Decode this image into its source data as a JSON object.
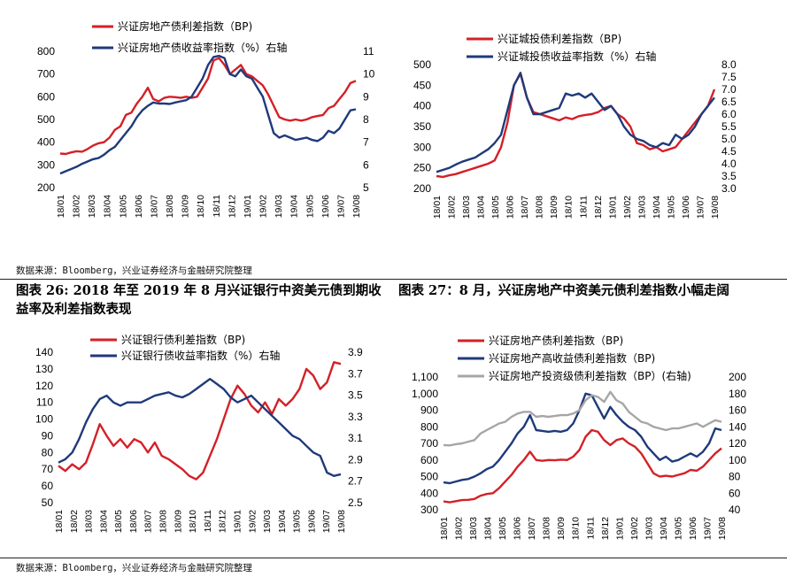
{
  "source_top": "数据来源：Bloomberg，兴业证券经济与金融研究院整理",
  "source_bottom": "数据来源：Bloomberg，兴业证券经济与金融研究院整理",
  "caption_26": "图表 26:  2018 年至 2019 年 8 月兴证银行中资美元债到期收益率及利差指数表现",
  "caption_27": "图表 27：8 月，兴证房地产中资美元债利差指数小幅走阔",
  "x_ticks": [
    "18/01",
    "18/02",
    "18/03",
    "18/04",
    "18/05",
    "18/06",
    "18/07",
    "18/08",
    "18/09",
    "18/10",
    "18/11",
    "18/12",
    "19/01",
    "19/02",
    "19/03",
    "19/04",
    "19/05",
    "19/06",
    "19/07",
    "19/08"
  ],
  "colors": {
    "red": "#d42027",
    "navy": "#1f3a7a",
    "gray": "#a6a6a6"
  },
  "chart_data": [
    {
      "id": "tl",
      "type": "line",
      "legend_position": "top",
      "x_ticks": [
        "18/01",
        "18/02",
        "18/03",
        "18/04",
        "18/05",
        "18/06",
        "18/07",
        "18/08",
        "18/09",
        "18/10",
        "18/11",
        "18/12",
        "19/01",
        "19/02",
        "19/03",
        "19/04",
        "19/05",
        "19/06",
        "19/07",
        "19/08"
      ],
      "y_left": {
        "ticks": [
          "200",
          "300",
          "400",
          "500",
          "600",
          "700",
          "800"
        ],
        "min": 200,
        "max": 800
      },
      "y_right": {
        "ticks": [
          "5",
          "6",
          "7",
          "8",
          "9",
          "10",
          "11"
        ],
        "min": 5,
        "max": 11
      },
      "series": [
        {
          "name": "兴证房地产债利差指数（BP)",
          "color": "red",
          "axis": "left",
          "values": [
            350,
            348,
            355,
            360,
            358,
            370,
            385,
            395,
            400,
            420,
            455,
            470,
            520,
            530,
            570,
            600,
            640,
            590,
            580,
            595,
            600,
            598,
            595,
            600,
            595,
            600,
            640,
            680,
            760,
            770,
            740,
            700,
            720,
            740,
            700,
            690,
            670,
            650,
            610,
            560,
            510,
            500,
            495,
            500,
            495,
            500,
            510,
            515,
            520,
            550,
            560,
            590,
            620,
            660,
            670
          ]
        },
        {
          "name": "兴证房地产债收益率指数（%）右轴",
          "color": "navy",
          "axis": "left",
          "values": [
            262,
            272,
            282,
            292,
            305,
            315,
            325,
            330,
            345,
            365,
            380,
            410,
            440,
            470,
            510,
            540,
            560,
            575,
            570,
            570,
            568,
            575,
            580,
            585,
            600,
            640,
            680,
            740,
            775,
            780,
            770,
            700,
            690,
            720,
            690,
            680,
            640,
            600,
            520,
            440,
            420,
            430,
            420,
            410,
            415,
            420,
            410,
            405,
            420,
            450,
            440,
            460,
            500,
            540,
            545
          ]
        }
      ]
    },
    {
      "id": "tr",
      "type": "line",
      "legend_position": "top",
      "x_ticks": [
        "18/01",
        "18/02",
        "18/03",
        "18/04",
        "18/05",
        "18/06",
        "18/07",
        "18/08",
        "18/09",
        "18/10",
        "18/11",
        "18/12",
        "19/01",
        "19/02",
        "19/03",
        "19/04",
        "19/05",
        "19/06",
        "19/07",
        "19/08"
      ],
      "y_left": {
        "ticks": [
          "200",
          "250",
          "300",
          "350",
          "400",
          "450",
          "500"
        ],
        "min": 200,
        "max": 500
      },
      "y_right": {
        "ticks": [
          "3.0",
          "3.5",
          "4.0",
          "4.5",
          "5.0",
          "5.5",
          "6.0",
          "6.5",
          "7.0",
          "7.5",
          "8.0"
        ],
        "min": 3.0,
        "max": 8.0
      },
      "series": [
        {
          "name": "兴证城投债利差指数（BP)",
          "color": "red",
          "axis": "left",
          "values": [
            230,
            228,
            232,
            235,
            240,
            245,
            250,
            255,
            260,
            268,
            300,
            360,
            450,
            478,
            420,
            385,
            380,
            375,
            370,
            365,
            372,
            368,
            375,
            378,
            380,
            385,
            395,
            400,
            380,
            370,
            350,
            310,
            305,
            295,
            300,
            290,
            295,
            300,
            320,
            340,
            360,
            380,
            400,
            440
          ]
        },
        {
          "name": "兴证城投债收益率指数（%）右轴",
          "color": "navy",
          "axis": "left",
          "values": [
            240,
            245,
            250,
            258,
            265,
            270,
            275,
            285,
            295,
            310,
            330,
            390,
            450,
            480,
            420,
            380,
            380,
            385,
            390,
            395,
            430,
            425,
            430,
            420,
            430,
            410,
            390,
            400,
            380,
            350,
            330,
            320,
            315,
            305,
            300,
            310,
            305,
            330,
            320,
            330,
            350,
            380,
            400,
            420
          ]
        }
      ]
    },
    {
      "id": "bl",
      "type": "line",
      "legend_position": "top",
      "x_ticks": [
        "18/01",
        "18/02",
        "18/03",
        "18/04",
        "18/05",
        "18/06",
        "18/07",
        "18/08",
        "18/09",
        "18/10",
        "18/11",
        "18/12",
        "19/01",
        "19/02",
        "19/03",
        "19/04",
        "19/05",
        "19/06",
        "19/07",
        "19/08"
      ],
      "y_left": {
        "ticks": [
          "50",
          "60",
          "70",
          "80",
          "90",
          "100",
          "110",
          "120",
          "130",
          "140"
        ],
        "min": 50,
        "max": 140
      },
      "y_right": {
        "ticks": [
          "2.5",
          "2.7",
          "2.9",
          "3.1",
          "3.3",
          "3.5",
          "3.7",
          "3.9"
        ],
        "min": 2.5,
        "max": 3.9
      },
      "series": [
        {
          "name": "兴证银行债利差指数（BP)",
          "color": "red",
          "axis": "left",
          "values": [
            72,
            69,
            73,
            70,
            74,
            85,
            97,
            90,
            84,
            88,
            83,
            88,
            86,
            80,
            86,
            78,
            76,
            73,
            70,
            66,
            64,
            68,
            78,
            88,
            100,
            112,
            120,
            115,
            108,
            104,
            110,
            103,
            112,
            108,
            112,
            118,
            130,
            126,
            118,
            122,
            134,
            133
          ]
        },
        {
          "name": "兴证银行债收益率指数（%）右轴",
          "color": "navy",
          "axis": "left",
          "values": [
            74,
            76,
            80,
            88,
            98,
            106,
            112,
            114,
            110,
            108,
            110,
            110,
            110,
            112,
            114,
            115,
            116,
            114,
            113,
            115,
            118,
            121,
            124,
            121,
            118,
            113,
            110,
            112,
            114,
            110,
            106,
            102,
            98,
            94,
            90,
            88,
            84,
            80,
            78,
            68,
            66,
            67
          ]
        }
      ]
    },
    {
      "id": "br",
      "type": "line",
      "legend_position": "top",
      "x_ticks": [
        "18/01",
        "18/02",
        "18/03",
        "18/04",
        "18/05",
        "18/06",
        "18/07",
        "18/08",
        "18/09",
        "18/10",
        "18/11",
        "18/12",
        "19/01",
        "19/02",
        "19/03",
        "19/04",
        "19/05",
        "19/06",
        "19/07",
        "19/08"
      ],
      "y_left": {
        "ticks": [
          "300",
          "400",
          "500",
          "600",
          "700",
          "800",
          "900",
          "1,000",
          "1,100"
        ],
        "min": 300,
        "max": 1100
      },
      "y_right": {
        "ticks": [
          "40",
          "60",
          "80",
          "100",
          "120",
          "140",
          "160",
          "180",
          "200"
        ],
        "min": 40,
        "max": 200
      },
      "series": [
        {
          "name": "兴证房地产债利差指数（BP)",
          "color": "red",
          "axis": "left",
          "values": [
            350,
            345,
            352,
            358,
            360,
            365,
            385,
            395,
            400,
            430,
            470,
            510,
            560,
            600,
            650,
            600,
            595,
            600,
            598,
            602,
            600,
            620,
            660,
            740,
            780,
            770,
            720,
            690,
            720,
            730,
            700,
            680,
            640,
            580,
            520,
            500,
            505,
            500,
            510,
            520,
            540,
            535,
            560,
            600,
            640,
            670
          ]
        },
        {
          "name": "兴证房地产高收益债利差指数（BP)",
          "color": "navy",
          "axis": "left",
          "values": [
            465,
            460,
            470,
            480,
            485,
            500,
            520,
            545,
            560,
            600,
            650,
            700,
            760,
            800,
            870,
            780,
            775,
            770,
            775,
            770,
            780,
            820,
            900,
            1000,
            990,
            920,
            850,
            920,
            870,
            830,
            800,
            780,
            740,
            680,
            640,
            600,
            620,
            590,
            600,
            620,
            640,
            620,
            650,
            700,
            790,
            780
          ]
        },
        {
          "name": "兴证房地产投资级债利差指数（BP）(右轴)",
          "color": "gray",
          "axis": "left",
          "values": [
            690,
            688,
            695,
            700,
            710,
            720,
            760,
            780,
            800,
            820,
            830,
            860,
            880,
            890,
            890,
            860,
            865,
            860,
            865,
            870,
            870,
            880,
            900,
            960,
            990,
            980,
            950,
            1010,
            960,
            940,
            890,
            860,
            830,
            820,
            800,
            790,
            780,
            790,
            790,
            800,
            810,
            820,
            800,
            820,
            840,
            830
          ]
        }
      ]
    }
  ]
}
